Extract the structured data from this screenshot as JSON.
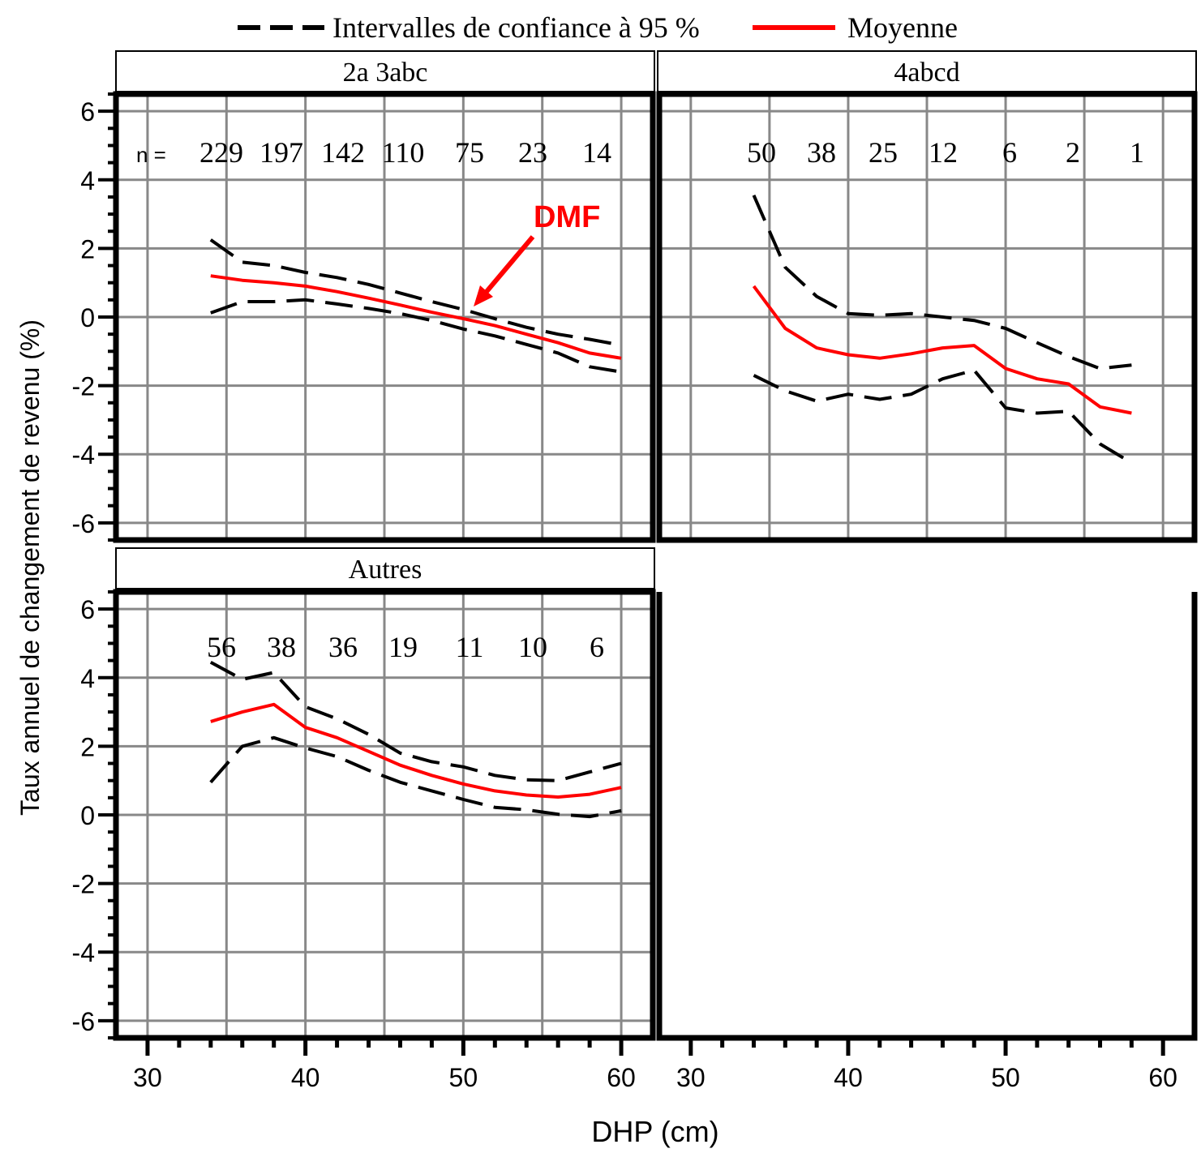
{
  "legend": {
    "ci_label": "Intervalles de confiance à 95 %",
    "mean_label": "Moyenne",
    "ci_color": "#000000",
    "mean_color": "#ff0000"
  },
  "axes": {
    "xlabel": "DHP (cm)",
    "ylabel": "Taux annuel de changement de revenu (%)"
  },
  "chart_data": {
    "type": "line",
    "xlim": [
      28,
      62
    ],
    "ylim": [
      -6.5,
      6.5
    ],
    "x_ticks": [
      30,
      40,
      50,
      60
    ],
    "y_ticks": [
      -6,
      -4,
      -2,
      0,
      2,
      4,
      6
    ],
    "grid": true,
    "legend_position": "top",
    "panels": [
      {
        "title": "2a 3abc",
        "n_prefix": "n =",
        "n_counts": [
          "229",
          "197",
          "142",
          "110",
          "75",
          "23",
          "14"
        ],
        "annotation": {
          "text": "DMF",
          "color": "#ff0000"
        },
        "series": [
          {
            "role": "mean",
            "x": [
              34,
              36,
              38,
              40,
              42,
              44,
              46,
              48,
              50,
              52,
              54,
              56,
              58,
              60
            ],
            "y": [
              1.2,
              1.07,
              1.0,
              0.9,
              0.74,
              0.55,
              0.35,
              0.14,
              -0.05,
              -0.25,
              -0.5,
              -0.75,
              -1.05,
              -1.2
            ]
          },
          {
            "role": "upper",
            "x": [
              34,
              36,
              38,
              40,
              42,
              44,
              46,
              48,
              50,
              52,
              54,
              56,
              58,
              60
            ],
            "y": [
              2.25,
              1.6,
              1.5,
              1.3,
              1.15,
              0.95,
              0.7,
              0.45,
              0.22,
              -0.05,
              -0.3,
              -0.5,
              -0.65,
              -0.82
            ]
          },
          {
            "role": "lower",
            "x": [
              34,
              36,
              38,
              40,
              42,
              44,
              46,
              48,
              50,
              52,
              54,
              56,
              58,
              60
            ],
            "y": [
              0.12,
              0.45,
              0.45,
              0.5,
              0.38,
              0.25,
              0.1,
              -0.1,
              -0.35,
              -0.55,
              -0.8,
              -1.05,
              -1.45,
              -1.6
            ]
          }
        ]
      },
      {
        "title": "4abcd",
        "n_prefix": "",
        "n_counts": [
          "50",
          "38",
          "25",
          "12",
          "6",
          "2",
          "1"
        ],
        "series": [
          {
            "role": "mean",
            "x": [
              34,
              36,
              38,
              40,
              42,
              44,
              46,
              48,
              50,
              52,
              54,
              56,
              58
            ],
            "y": [
              0.9,
              -0.33,
              -0.9,
              -1.1,
              -1.2,
              -1.07,
              -0.9,
              -0.83,
              -1.5,
              -1.8,
              -1.95,
              -2.62,
              -2.8
            ]
          },
          {
            "role": "upper",
            "x": [
              34,
              36,
              38,
              40,
              42,
              44,
              46,
              48,
              50,
              52,
              54,
              56,
              58
            ],
            "y": [
              3.55,
              1.45,
              0.6,
              0.1,
              0.05,
              0.1,
              0.0,
              -0.1,
              -0.33,
              -0.75,
              -1.15,
              -1.5,
              -1.4
            ]
          },
          {
            "role": "lower",
            "x": [
              34,
              36,
              38,
              40,
              42,
              44,
              46,
              48,
              50,
              52,
              54,
              56,
              58
            ],
            "y": [
              -1.7,
              -2.15,
              -2.45,
              -2.25,
              -2.4,
              -2.25,
              -1.8,
              -1.55,
              -2.65,
              -2.8,
              -2.75,
              -3.7,
              -4.25
            ]
          }
        ]
      },
      {
        "title": "Autres",
        "n_prefix": "",
        "n_counts": [
          "56",
          "38",
          "36",
          "19",
          "11",
          "10",
          "6"
        ],
        "series": [
          {
            "role": "mean",
            "x": [
              34,
              36,
              38,
              40,
              42,
              44,
              46,
              48,
              50,
              52,
              54,
              56,
              58,
              60
            ],
            "y": [
              2.72,
              3.0,
              3.22,
              2.55,
              2.25,
              1.85,
              1.45,
              1.15,
              0.9,
              0.7,
              0.58,
              0.52,
              0.6,
              0.8
            ]
          },
          {
            "role": "upper",
            "x": [
              34,
              36,
              38,
              40,
              42,
              44,
              46,
              48,
              50,
              52,
              54,
              56,
              58,
              60
            ],
            "y": [
              4.45,
              3.95,
              4.15,
              3.15,
              2.8,
              2.35,
              1.8,
              1.55,
              1.4,
              1.15,
              1.02,
              1.0,
              1.25,
              1.5
            ]
          },
          {
            "role": "lower",
            "x": [
              34,
              36,
              38,
              40,
              42,
              44,
              46,
              48,
              50,
              52,
              54,
              56,
              58,
              60
            ],
            "y": [
              0.95,
              2.0,
              2.25,
              1.95,
              1.7,
              1.3,
              0.95,
              0.7,
              0.45,
              0.22,
              0.15,
              0.02,
              -0.05,
              0.12
            ]
          }
        ]
      }
    ]
  }
}
